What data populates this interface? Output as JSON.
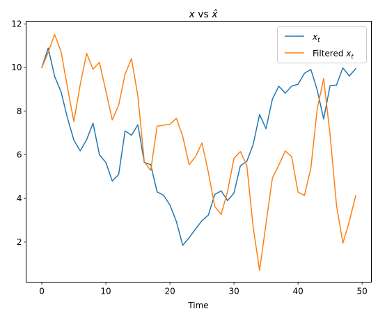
{
  "chart_data": {
    "type": "line",
    "title": "𝑥 vs 𝑥̂",
    "xlabel": "Time",
    "ylabel": "",
    "xlim": [
      -2.45,
      51.45
    ],
    "ylim": [
      0.16,
      12.13
    ],
    "xticks": [
      0,
      10,
      20,
      30,
      40,
      50
    ],
    "yticks": [
      2,
      4,
      6,
      8,
      10,
      12
    ],
    "grid": false,
    "legend_position": "top-right",
    "x": [
      0,
      1,
      2,
      3,
      4,
      5,
      6,
      7,
      8,
      9,
      10,
      11,
      12,
      13,
      14,
      15,
      16,
      17,
      18,
      19,
      20,
      21,
      22,
      23,
      24,
      25,
      26,
      27,
      28,
      29,
      30,
      31,
      32,
      33,
      34,
      35,
      36,
      37,
      38,
      39,
      40,
      41,
      42,
      43,
      44,
      45,
      46,
      47,
      48,
      49
    ],
    "series": [
      {
        "name": "𝑥ₜ",
        "color": "#1f77b4",
        "values": [
          10.0,
          10.9,
          9.6,
          8.9,
          7.7,
          6.68,
          6.18,
          6.7,
          7.45,
          6.0,
          5.65,
          4.8,
          5.1,
          7.1,
          6.9,
          7.38,
          5.65,
          5.55,
          4.3,
          4.15,
          3.7,
          2.95,
          1.85,
          2.2,
          2.6,
          2.98,
          3.24,
          4.18,
          4.35,
          3.9,
          4.25,
          5.5,
          5.7,
          6.48,
          7.85,
          7.2,
          8.56,
          9.15,
          8.83,
          9.15,
          9.24,
          9.74,
          9.92,
          8.97,
          7.65,
          9.17,
          9.2,
          9.99,
          9.62,
          9.95
        ]
      },
      {
        "name": "Filtered 𝑥ₜ",
        "color": "#ff7f0e",
        "values": [
          10.0,
          10.7,
          11.52,
          10.75,
          9.1,
          7.53,
          9.23,
          10.65,
          9.93,
          10.24,
          8.93,
          7.6,
          8.28,
          9.7,
          10.41,
          8.7,
          5.69,
          5.28,
          7.32,
          7.36,
          7.4,
          7.68,
          6.85,
          5.55,
          5.92,
          6.55,
          5.2,
          3.63,
          3.27,
          4.32,
          5.84,
          6.15,
          5.52,
          2.67,
          0.7,
          2.84,
          4.94,
          5.53,
          6.18,
          5.92,
          4.29,
          4.14,
          5.39,
          8.12,
          9.5,
          6.92,
          3.7,
          1.95,
          2.94,
          4.13
        ]
      }
    ]
  }
}
